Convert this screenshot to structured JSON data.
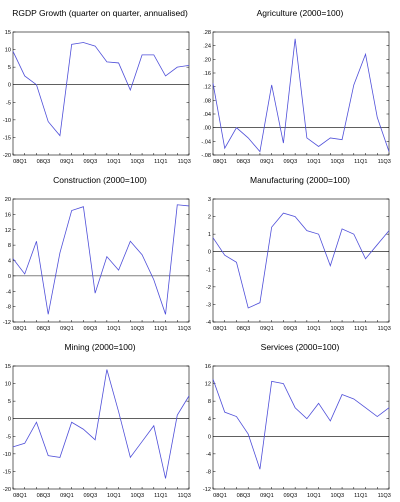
{
  "chart_data": [
    {
      "type": "line",
      "title": "RGDP Growth (quarter on quarter, annualised)",
      "xlabel": "",
      "ylabel": "",
      "x": [
        "08Q1",
        "08Q2",
        "08Q3",
        "08Q4",
        "09Q1",
        "09Q2",
        "09Q3",
        "09Q4",
        "10Q1",
        "10Q2",
        "10Q3",
        "10Q4",
        "11Q1",
        "11Q2",
        "11Q3",
        "11Q4"
      ],
      "x_ticks": [
        "08Q1",
        "08Q3",
        "09Q1",
        "09Q3",
        "10Q1",
        "10Q3",
        "11Q1",
        "11Q3"
      ],
      "ylim": [
        -20,
        15
      ],
      "y_ticks": [
        "15",
        "10",
        "5",
        "0",
        "-5",
        "-10",
        "-15",
        "-20"
      ],
      "y_tick_values": [
        15,
        10,
        5,
        0,
        -5,
        -10,
        -15,
        -20
      ],
      "zero_line": true,
      "color": "#4f4fd9",
      "series": [
        {
          "values": [
            9.5,
            2.5,
            0,
            -10.5,
            -14.5,
            11.5,
            12,
            11,
            6.5,
            6.2,
            -1.5,
            8.5,
            8.5,
            2.5,
            5,
            5.5
          ]
        }
      ]
    },
    {
      "type": "line",
      "title": "Agriculture (2000=100)",
      "xlabel": "",
      "ylabel": "",
      "x": [
        "08Q1",
        "08Q2",
        "08Q3",
        "08Q4",
        "09Q1",
        "09Q2",
        "09Q3",
        "09Q4",
        "10Q1",
        "10Q2",
        "10Q3",
        "10Q4",
        "11Q1",
        "11Q2",
        "11Q3",
        "11Q4"
      ],
      "x_ticks": [
        "08Q1",
        "08Q3",
        "09Q1",
        "09Q3",
        "10Q1",
        "10Q3",
        "11Q1",
        "11Q3"
      ],
      "ylim": [
        -0.08,
        0.28
      ],
      "y_ticks": [
        ".28",
        ".24",
        ".20",
        ".16",
        ".12",
        ".08",
        ".04",
        ".00",
        "-.04",
        "-.08"
      ],
      "y_tick_values": [
        0.28,
        0.24,
        0.2,
        0.16,
        0.12,
        0.08,
        0.04,
        0.0,
        -0.04,
        -0.08
      ],
      "zero_line": true,
      "color": "#4f4fd9",
      "series": [
        {
          "values": [
            0.13,
            -0.06,
            0.0,
            -0.03,
            -0.07,
            0.125,
            -0.045,
            0.26,
            -0.03,
            -0.055,
            -0.03,
            -0.035,
            0.125,
            0.215,
            0.03,
            -0.07
          ]
        }
      ]
    },
    {
      "type": "line",
      "title": "Construction (2000=100)",
      "xlabel": "",
      "ylabel": "",
      "x": [
        "08Q1",
        "08Q2",
        "08Q3",
        "08Q4",
        "09Q1",
        "09Q2",
        "09Q3",
        "09Q4",
        "10Q1",
        "10Q2",
        "10Q3",
        "10Q4",
        "11Q1",
        "11Q2",
        "11Q3",
        "11Q4"
      ],
      "x_ticks": [
        "08Q1",
        "08Q3",
        "09Q1",
        "09Q3",
        "10Q1",
        "10Q3",
        "11Q1",
        "11Q3"
      ],
      "ylim": [
        -12,
        20
      ],
      "y_ticks": [
        "20",
        "16",
        "12",
        "8",
        "4",
        "0",
        "-4",
        "-8",
        "-12"
      ],
      "y_tick_values": [
        20,
        16,
        12,
        8,
        4,
        0,
        -4,
        -8,
        -12
      ],
      "zero_line": true,
      "color": "#4f4fd9",
      "series": [
        {
          "values": [
            4.5,
            0.5,
            9,
            -10,
            6,
            17,
            18,
            -4.5,
            5,
            1.5,
            9,
            5.5,
            -1,
            -10,
            18.5,
            18.2
          ]
        }
      ]
    },
    {
      "type": "line",
      "title": "Manufacturing (2000=100)",
      "xlabel": "",
      "ylabel": "",
      "x": [
        "08Q1",
        "08Q2",
        "08Q3",
        "08Q4",
        "09Q1",
        "09Q2",
        "09Q3",
        "09Q4",
        "10Q1",
        "10Q2",
        "10Q3",
        "10Q4",
        "11Q1",
        "11Q2",
        "11Q3",
        "11Q4"
      ],
      "x_ticks": [
        "08Q1",
        "08Q3",
        "09Q1",
        "09Q3",
        "10Q1",
        "10Q3",
        "11Q1",
        "11Q3"
      ],
      "ylim": [
        -4,
        3
      ],
      "y_ticks": [
        "3",
        "2",
        "1",
        "0",
        "-1",
        "-2",
        "-3",
        "-4"
      ],
      "y_tick_values": [
        3,
        2,
        1,
        0,
        -1,
        -2,
        -3,
        -4
      ],
      "zero_line": true,
      "color": "#4f4fd9",
      "series": [
        {
          "values": [
            0.8,
            -0.2,
            -0.6,
            -3.2,
            -2.9,
            1.4,
            2.2,
            2.0,
            1.2,
            1.0,
            -0.8,
            1.3,
            1.0,
            -0.4,
            0.4,
            1.2
          ]
        }
      ]
    },
    {
      "type": "line",
      "title": "Mining (2000=100)",
      "xlabel": "",
      "ylabel": "",
      "x": [
        "08Q1",
        "08Q2",
        "08Q3",
        "08Q4",
        "09Q1",
        "09Q2",
        "09Q3",
        "09Q4",
        "10Q1",
        "10Q2",
        "10Q3",
        "10Q4",
        "11Q1",
        "11Q2",
        "11Q3",
        "11Q4"
      ],
      "x_ticks": [
        "08Q1",
        "08Q3",
        "09Q1",
        "09Q3",
        "10Q1",
        "10Q3",
        "11Q1",
        "11Q3"
      ],
      "ylim": [
        -20,
        15
      ],
      "y_ticks": [
        "15",
        "10",
        "5",
        "0",
        "-5",
        "-10",
        "-15",
        "-20"
      ],
      "y_tick_values": [
        15,
        10,
        5,
        0,
        -5,
        -10,
        -15,
        -20
      ],
      "zero_line": true,
      "color": "#4f4fd9",
      "series": [
        {
          "values": [
            -8,
            -7,
            -1,
            -10.5,
            -11,
            -1,
            -3,
            -6,
            14,
            2,
            -11,
            -6.5,
            -2,
            -17,
            1,
            6.5
          ]
        }
      ]
    },
    {
      "type": "line",
      "title": "Services (2000=100)",
      "xlabel": "",
      "ylabel": "",
      "x": [
        "08Q1",
        "08Q2",
        "08Q3",
        "08Q4",
        "09Q1",
        "09Q2",
        "09Q3",
        "09Q4",
        "10Q1",
        "10Q2",
        "10Q3",
        "10Q4",
        "11Q1",
        "11Q2",
        "11Q3",
        "11Q4"
      ],
      "x_ticks": [
        "08Q1",
        "08Q3",
        "09Q1",
        "09Q3",
        "10Q1",
        "10Q3",
        "11Q1",
        "11Q3"
      ],
      "ylim": [
        -12,
        16
      ],
      "y_ticks": [
        "16",
        "12",
        "8",
        "4",
        "0",
        "-4",
        "-8",
        "-12"
      ],
      "y_tick_values": [
        16,
        12,
        8,
        4,
        0,
        -4,
        -8,
        -12
      ],
      "zero_line": true,
      "color": "#4f4fd9",
      "series": [
        {
          "values": [
            13,
            5.5,
            4.5,
            0.5,
            -7.5,
            12.5,
            12,
            6.5,
            4,
            7.5,
            3.5,
            9.5,
            8.5,
            6.5,
            4.5,
            6.5
          ]
        }
      ]
    }
  ]
}
